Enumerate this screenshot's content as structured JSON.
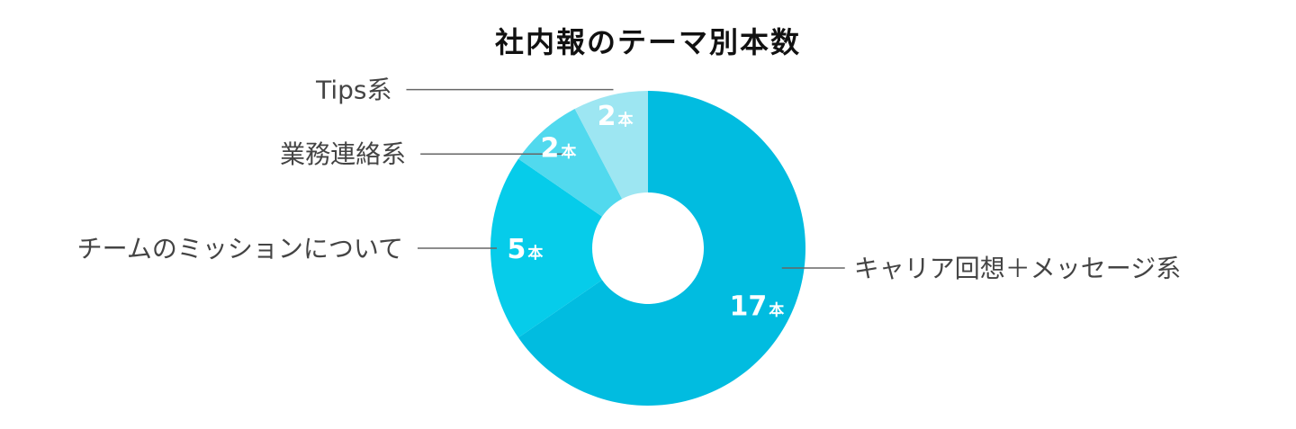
{
  "chart_data": {
    "type": "pie",
    "title": "社内報のテーマ別本数",
    "unit": "本",
    "categories": [
      "キャリア回想＋メッセージ系",
      "チームのミッションについて",
      "業務連絡系",
      "Tips系"
    ],
    "values": [
      17,
      5,
      2,
      2
    ],
    "colors": [
      "#01BCE0",
      "#06CCEA",
      "#51D9EE",
      "#9DE6F2"
    ],
    "legend": "none",
    "grid": false
  }
}
